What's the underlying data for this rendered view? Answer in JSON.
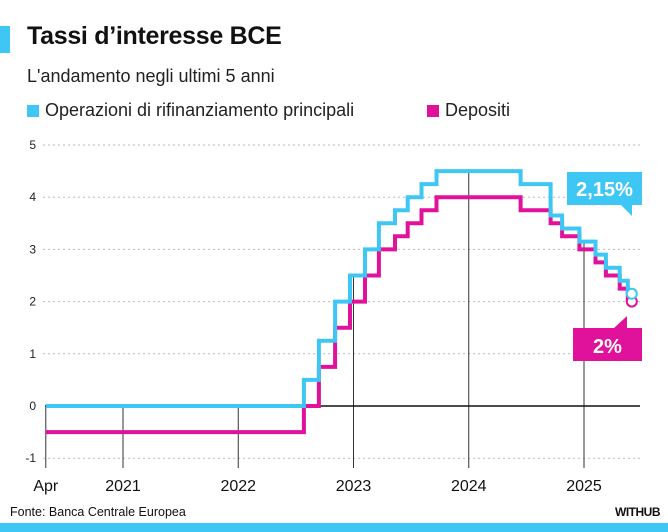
{
  "header": {
    "title": "Tassi d’interesse BCE",
    "subtitle": "L'andamento negli ultimi 5 anni"
  },
  "footer": {
    "source": "Fonte: Banca Centrale Europea",
    "brand": "WITHUB"
  },
  "colors": {
    "mro": "#3ec7f4",
    "deposit": "#e0119a",
    "accent_strip": "#3ec7f4"
  },
  "chart_data": {
    "type": "line",
    "step": true,
    "title": "Tassi d’interesse BCE",
    "subtitle": "L'andamento negli ultimi 5 anni",
    "xlabel": "",
    "ylabel": "",
    "xlim": [
      2020.33,
      2025.45
    ],
    "ylim": [
      -1,
      5
    ],
    "yticks": [
      -1,
      0,
      1,
      2,
      3,
      4,
      5
    ],
    "xticks": [
      {
        "value": 2020.33,
        "label": "Apr"
      },
      {
        "value": 2021,
        "label": "2021"
      },
      {
        "value": 2022,
        "label": "2022"
      },
      {
        "value": 2023,
        "label": "2023"
      },
      {
        "value": 2024,
        "label": "2024"
      },
      {
        "value": 2025,
        "label": "2025"
      }
    ],
    "grid": "horizontal dotted",
    "legend_position": "top",
    "series": [
      {
        "name": "Operazioni di rifinanziamento principali",
        "color": "#3ec7f4",
        "end_label": "2,15%",
        "points": [
          [
            2020.33,
            0
          ],
          [
            2022.57,
            0.5
          ],
          [
            2022.7,
            1.25
          ],
          [
            2022.84,
            2.0
          ],
          [
            2022.97,
            2.5
          ],
          [
            2023.1,
            3.0
          ],
          [
            2023.22,
            3.5
          ],
          [
            2023.36,
            3.75
          ],
          [
            2023.47,
            4.0
          ],
          [
            2023.59,
            4.25
          ],
          [
            2023.72,
            4.5
          ],
          [
            2024.45,
            4.25
          ],
          [
            2024.71,
            3.65
          ],
          [
            2024.81,
            3.4
          ],
          [
            2024.96,
            3.15
          ],
          [
            2025.1,
            2.9
          ],
          [
            2025.19,
            2.65
          ],
          [
            2025.31,
            2.4
          ],
          [
            2025.38,
            2.15
          ]
        ]
      },
      {
        "name": "Depositi",
        "color": "#e0119a",
        "end_label": "2%",
        "points": [
          [
            2020.33,
            -0.5
          ],
          [
            2022.57,
            0
          ],
          [
            2022.7,
            0.75
          ],
          [
            2022.84,
            1.5
          ],
          [
            2022.97,
            2.0
          ],
          [
            2023.1,
            2.5
          ],
          [
            2023.22,
            3.0
          ],
          [
            2023.36,
            3.25
          ],
          [
            2023.47,
            3.5
          ],
          [
            2023.59,
            3.75
          ],
          [
            2023.72,
            4.0
          ],
          [
            2024.45,
            3.75
          ],
          [
            2024.71,
            3.5
          ],
          [
            2024.81,
            3.25
          ],
          [
            2024.96,
            3.0
          ],
          [
            2025.1,
            2.75
          ],
          [
            2025.19,
            2.5
          ],
          [
            2025.31,
            2.25
          ],
          [
            2025.38,
            2.0
          ]
        ]
      }
    ]
  }
}
